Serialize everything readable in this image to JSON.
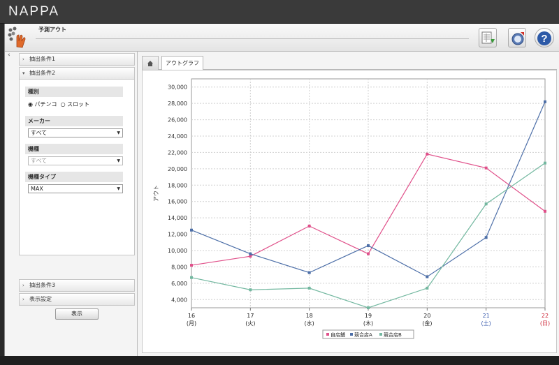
{
  "app": {
    "brand": "NAPPA",
    "screen_title": "予測アウト"
  },
  "header": {
    "buttons": [
      {
        "name": "export-csv-button",
        "icon": "spreadsheet-download-icon"
      },
      {
        "name": "url-button",
        "icon": "url-icon"
      },
      {
        "name": "help-button",
        "icon": "help-icon"
      }
    ]
  },
  "sidebar": {
    "panels": [
      {
        "label": "抽出条件1",
        "arrow": "›"
      },
      {
        "label": "抽出条件2",
        "arrow": "▾"
      },
      {
        "label": "抽出条件3",
        "arrow": "›"
      },
      {
        "label": "表示設定",
        "arrow": "›"
      }
    ],
    "fields": {
      "kind": {
        "label": "種別",
        "options": [
          {
            "label": "パチンコ",
            "checked": true
          },
          {
            "label": "スロット",
            "checked": false
          }
        ]
      },
      "maker": {
        "label": "メーカー",
        "value": "すべて"
      },
      "model": {
        "label": "機種",
        "value": "すべて"
      },
      "model_type": {
        "label": "機種タイプ",
        "value": "MAX"
      }
    },
    "show_button": "表示"
  },
  "tabs": {
    "home_icon": "home-icon",
    "graph_tab": "アウトグラフ"
  },
  "chart_data": {
    "type": "line",
    "ylabel": "アウト",
    "ylim": [
      3000,
      31000
    ],
    "yticks": [
      4000,
      6000,
      8000,
      10000,
      12000,
      14000,
      16000,
      18000,
      20000,
      22000,
      24000,
      26000,
      28000,
      30000
    ],
    "ytick_labels": [
      "4,000",
      "6,000",
      "8,000",
      "10,000",
      "12,000",
      "14,000",
      "16,000",
      "18,000",
      "20,000",
      "22,000",
      "24,000",
      "26,000",
      "28,000",
      "30,000"
    ],
    "categories": [
      {
        "day": "16",
        "dow": "(月)",
        "color": "#222222"
      },
      {
        "day": "17",
        "dow": "(火)",
        "color": "#222222"
      },
      {
        "day": "18",
        "dow": "(水)",
        "color": "#222222"
      },
      {
        "day": "19",
        "dow": "(木)",
        "color": "#222222"
      },
      {
        "day": "20",
        "dow": "(金)",
        "color": "#222222"
      },
      {
        "day": "21",
        "dow": "(土)",
        "color": "#3355aa"
      },
      {
        "day": "22",
        "dow": "(日)",
        "color": "#cc2233"
      }
    ],
    "series": [
      {
        "name": "自店舗",
        "color": "#e0508a",
        "values": [
          8200,
          9300,
          13000,
          9600,
          21800,
          20100,
          14800
        ]
      },
      {
        "name": "競合店A",
        "color": "#4d6fa8",
        "values": [
          12500,
          9600,
          7300,
          10600,
          6800,
          11600,
          28200
        ]
      },
      {
        "name": "競合店B",
        "color": "#73b8a0",
        "values": [
          6700,
          5200,
          5400,
          3000,
          5400,
          15700,
          20700
        ]
      }
    ],
    "grid": true,
    "legend": "bottom"
  }
}
